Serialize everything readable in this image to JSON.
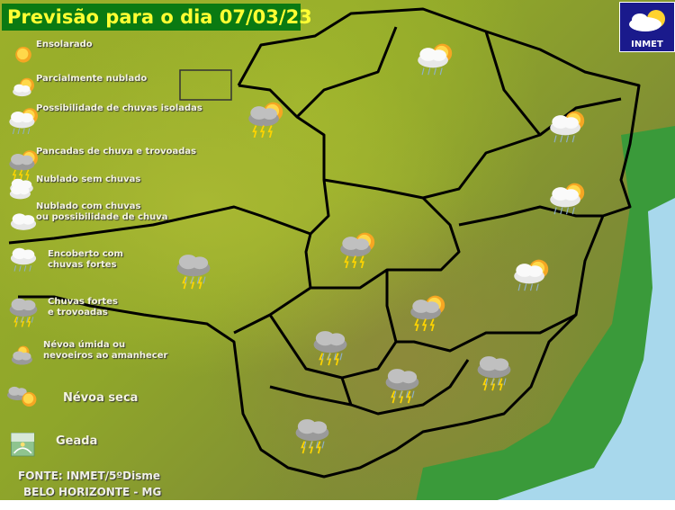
{
  "header": {
    "title": "Previsão para o dia 07/03/23"
  },
  "logo": {
    "text": "INMET"
  },
  "legend": [
    {
      "icon": "sunny-icon",
      "label": "Ensolarado"
    },
    {
      "icon": "partly-cloudy-icon",
      "label": "Parcialmente nublado"
    },
    {
      "icon": "isolated-showers-icon",
      "label": "Possibilidade de chuvas isoladas"
    },
    {
      "icon": "showers-thunder-icon",
      "label": "Pancadas de chuva e trovoadas"
    },
    {
      "icon": "cloudy-icon",
      "label": "Nublado sem chuvas"
    },
    {
      "icon": "cloudy-rain-icon",
      "label": "Nublado com chuvas",
      "label2": "ou possibilidade de chuva"
    },
    {
      "icon": "overcast-heavy-rain-icon",
      "label": "Encoberto com",
      "label2": "chuvas fortes"
    },
    {
      "icon": "heavy-rain-thunder-icon",
      "label": "Chuvas fortes",
      "label2": "e trovoadas"
    },
    {
      "icon": "mist-icon",
      "label": "Névoa úmida ou",
      "label2": "nevoeiros ao amanhecer"
    },
    {
      "icon": "haze-icon",
      "label": "Névoa seca"
    },
    {
      "icon": "frost-icon",
      "label": "Geada"
    }
  ],
  "map_forecasts": [
    {
      "type": "isolated-showers"
    },
    {
      "type": "showers-thunder"
    },
    {
      "type": "isolated-showers"
    },
    {
      "type": "isolated-showers"
    },
    {
      "type": "showers-thunder"
    },
    {
      "type": "heavy-rain-thunder"
    },
    {
      "type": "isolated-showers"
    },
    {
      "type": "showers-thunder"
    },
    {
      "type": "heavy-rain-thunder"
    },
    {
      "type": "heavy-rain-thunder"
    },
    {
      "type": "heavy-rain-thunder"
    },
    {
      "type": "heavy-rain-thunder"
    }
  ],
  "source": {
    "line1": "FONTE: INMET/5ºDisme",
    "line2": "BELO HORIZONTE - MG"
  },
  "colors": {
    "title_bg": "#0a7a12",
    "title_text": "#ffff33",
    "sea": "#a8d8ec",
    "coast": "#2f9a3a",
    "border": "#000000"
  }
}
